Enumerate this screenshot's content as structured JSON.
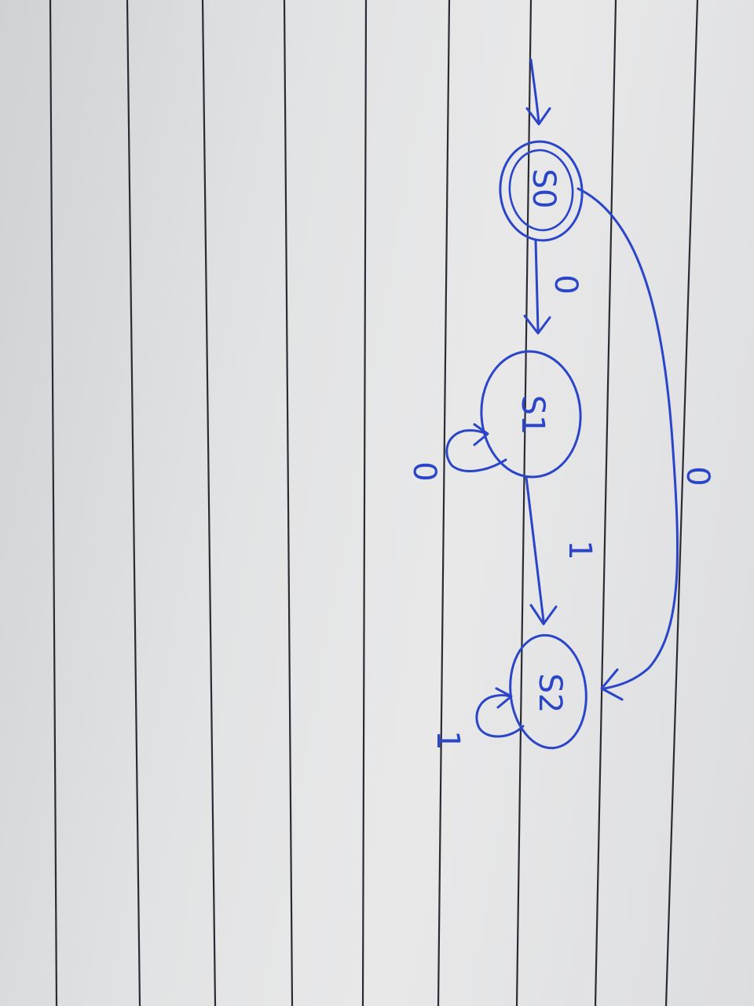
{
  "diagram": {
    "kind": "finite-state-machine",
    "ink_color": "#2a45c8",
    "rule_color": "#2b2b33",
    "states": [
      {
        "id": "s0",
        "label": "S0",
        "start": true,
        "accepting": true
      },
      {
        "id": "s1",
        "label": "S1",
        "start": false,
        "accepting": false
      },
      {
        "id": "s2",
        "label": "S2",
        "start": false,
        "accepting": false
      }
    ],
    "transitions": [
      {
        "from": "s0",
        "to": "s1",
        "label": "0"
      },
      {
        "from": "s1",
        "to": "s1",
        "label": "0"
      },
      {
        "from": "s1",
        "to": "s2",
        "label": "1"
      },
      {
        "from": "s0",
        "to": "s2",
        "label": "0"
      },
      {
        "from": "s2",
        "to": "s2",
        "label": "1"
      }
    ]
  }
}
